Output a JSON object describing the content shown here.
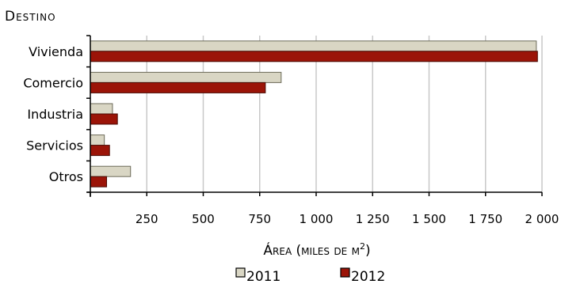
{
  "chart_data": {
    "type": "bar",
    "orientation": "horizontal",
    "ylabel": "Destino",
    "xlabel": "Área (miles de m",
    "xlabel_sup": "2",
    "xlabel_end": ")",
    "categories": [
      "Vivienda",
      "Comercio",
      "Industria",
      "Servicios",
      "Otros"
    ],
    "series": [
      {
        "name": "2011",
        "values": [
          1975,
          845,
          98,
          62,
          178
        ],
        "color": "#d9d6c4",
        "stroke": "#6b6a58"
      },
      {
        "name": "2012",
        "values": [
          1980,
          775,
          120,
          85,
          72
        ],
        "color": "#9b1408",
        "stroke": "#4a0a04"
      }
    ],
    "xlim": [
      0,
      2000
    ],
    "xticks": [
      0,
      250,
      500,
      750,
      1000,
      1250,
      1500,
      1750,
      2000
    ],
    "xtick_labels": [
      "",
      "250",
      "500",
      "750",
      "1 000",
      "1 250",
      "1 500",
      "1 750",
      "2 000"
    ],
    "grid": "vertical",
    "legend_position": "bottom"
  }
}
